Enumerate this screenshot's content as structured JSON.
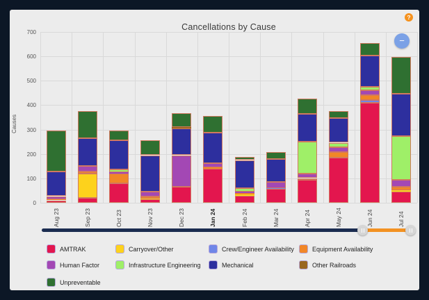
{
  "panel": {
    "help_icon": "?",
    "help_color": "#f5921e",
    "zoom_out_icon": "−",
    "zoom_out_color": "#7ba1e6"
  },
  "chart_data": {
    "type": "bar",
    "stacked": true,
    "title": "Cancellations by Cause",
    "xlabel": "",
    "ylabel": "Causes",
    "ylim": [
      0,
      700
    ],
    "ytick_step": 100,
    "grid": true,
    "legend_position": "bottom",
    "bold_category": "Jan 24",
    "segment_border_color": "#d1795f",
    "categories": [
      "Aug 23",
      "Sep 23",
      "Oct 23",
      "Nov 23",
      "Dec 23",
      "Jan 24",
      "Feb 24",
      "Mar 24",
      "Apr 24",
      "May 24",
      "Jun 24",
      "Jul 24"
    ],
    "series": [
      {
        "name": "AMTRAK",
        "color": "#e3164e",
        "values": [
          10,
          20,
          80,
          13,
          65,
          139,
          28,
          57,
          93,
          186,
          409,
          45
        ]
      },
      {
        "name": "Carryover/Other",
        "color": "#fdd21c",
        "values": [
          0,
          100,
          0,
          4,
          0,
          0,
          5,
          0,
          0,
          0,
          0,
          7
        ]
      },
      {
        "name": "Crew/Engineer Availability",
        "color": "#6f86e8",
        "values": [
          0,
          0,
          0,
          0,
          0,
          0,
          0,
          3,
          0,
          0,
          11,
          0
        ]
      },
      {
        "name": "Equipment Availability",
        "color": "#f18727",
        "values": [
          3,
          8,
          40,
          8,
          0,
          5,
          7,
          0,
          8,
          21,
          21,
          13
        ]
      },
      {
        "name": "Human Factor",
        "color": "#a348b4",
        "values": [
          14,
          22,
          6,
          20,
          130,
          18,
          5,
          25,
          19,
          22,
          19,
          28
        ]
      },
      {
        "name": "Infrastructure Engineering",
        "color": "#9fef68",
        "values": [
          0,
          0,
          10,
          0,
          0,
          0,
          15,
          0,
          131,
          17,
          15,
          181
        ]
      },
      {
        "name": "Mechanical",
        "color": "#2d2f9e",
        "values": [
          100,
          115,
          120,
          150,
          110,
          125,
          115,
          95,
          113,
          100,
          129,
          173
        ]
      },
      {
        "name": "Other Railroads",
        "color": "#99661f",
        "values": [
          0,
          0,
          0,
          0,
          6,
          0,
          0,
          0,
          0,
          0,
          0,
          0
        ]
      },
      {
        "name": "Unpreventable",
        "color": "#2f7031",
        "values": [
          168,
          110,
          41,
          62,
          57,
          70,
          13,
          28,
          62,
          31,
          50,
          151
        ]
      }
    ]
  },
  "slider": {
    "track_color": "#1b2c50",
    "range_color": "#f39222"
  }
}
